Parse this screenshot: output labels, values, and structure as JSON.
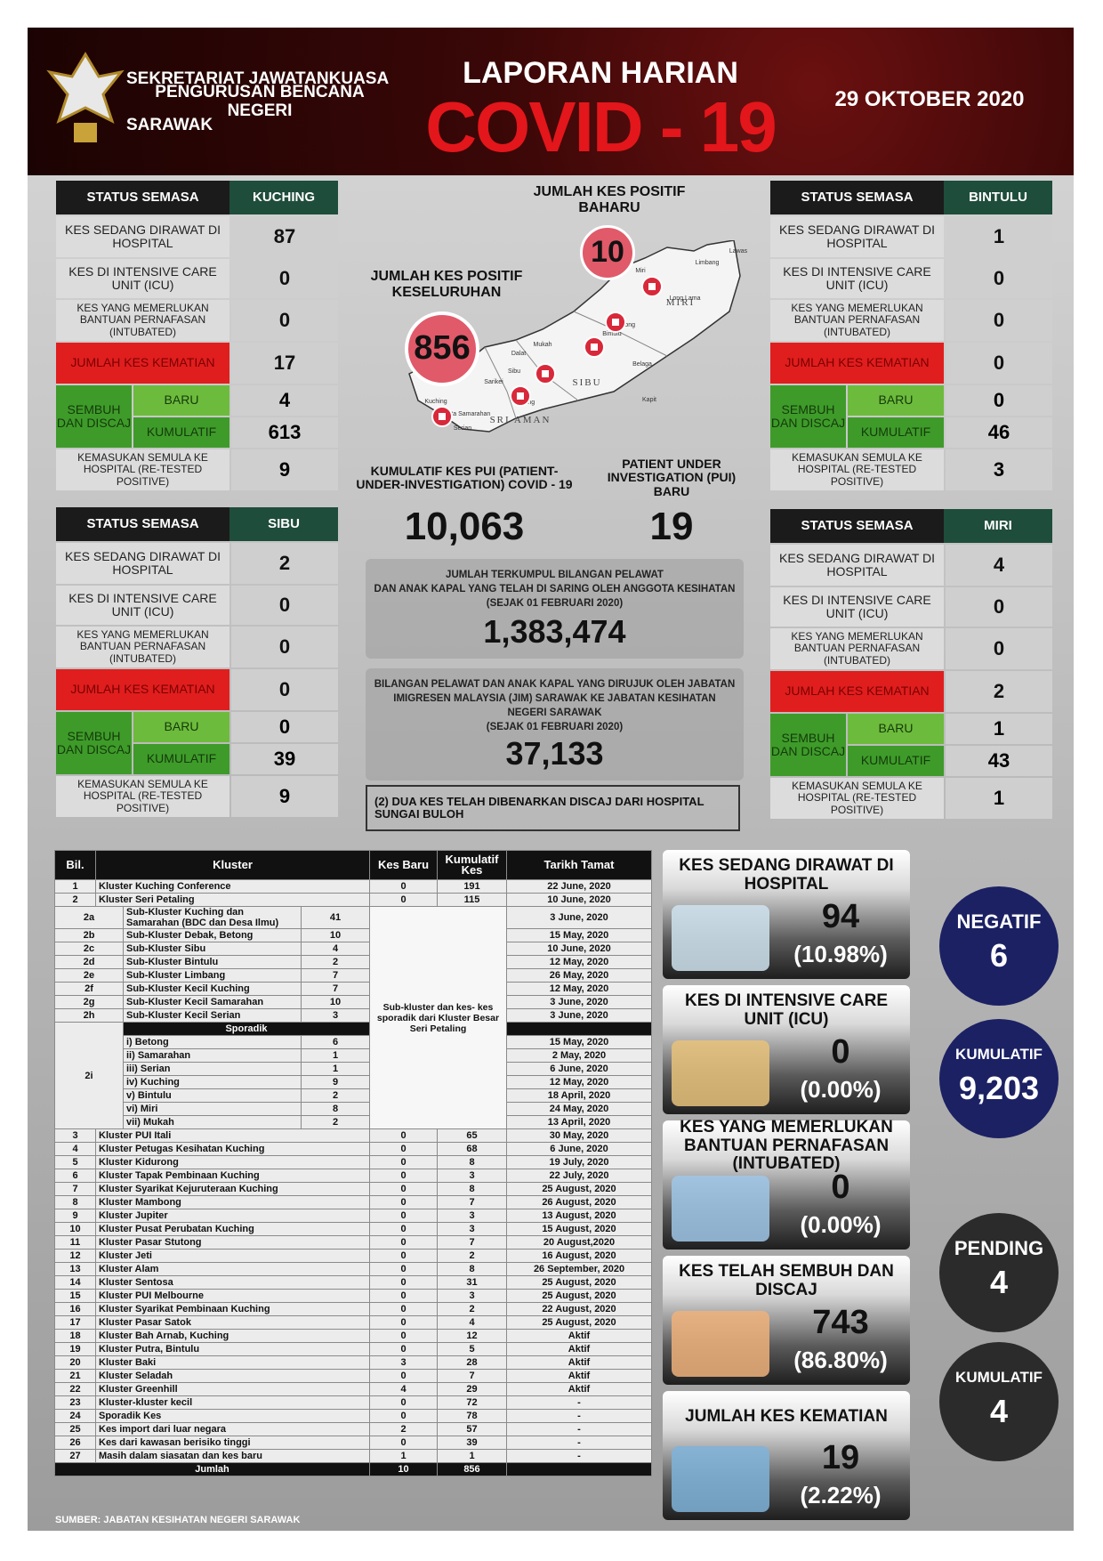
{
  "header": {
    "org_lines": [
      "SEKRETARIAT JAWATANKUASA",
      "PENGURUSAN BENCANA NEGERI",
      "SARAWAK"
    ],
    "title": "LAPORAN HARIAN",
    "subtitle": "COVID - 19",
    "date": "29 OKTOBER 2020"
  },
  "panels": [
    {
      "header": "STATUS SEMASA",
      "district": "KUCHING",
      "hospital": {
        "label": "KES SEDANG DIRAWAT DI HOSPITAL",
        "value": 87
      },
      "icu": {
        "label": "KES DI INTENSIVE CARE UNIT (ICU)",
        "value": 0
      },
      "intubated": {
        "label": "KES YANG MEMERLUKAN BANTUAN PERNAFASAN (INTUBATED)",
        "value": 0
      },
      "deaths": {
        "label": "JUMLAH KES KEMATIAN",
        "value": 17
      },
      "recovered": {
        "label": "SEMBUH DAN DISCAJ",
        "new_label": "BARU",
        "new": 4,
        "cumulative_label": "KUMULATIF",
        "cumulative": 613
      },
      "retested": {
        "label": "KEMASUKAN SEMULA KE HOSPITAL (RE-TESTED POSITIVE)",
        "value": 9
      }
    },
    {
      "header": "STATUS SEMASA",
      "district": "BINTULU",
      "hospital": {
        "label": "KES SEDANG DIRAWAT DI HOSPITAL",
        "value": 1
      },
      "icu": {
        "label": "KES DI INTENSIVE CARE UNIT (ICU)",
        "value": 0
      },
      "intubated": {
        "label": "KES YANG MEMERLUKAN BANTUAN PERNAFASAN (INTUBATED)",
        "value": 0
      },
      "deaths": {
        "label": "JUMLAH KES KEMATIAN",
        "value": 0
      },
      "recovered": {
        "label": "SEMBUH DAN DISCAJ",
        "new_label": "BARU",
        "new": 0,
        "cumulative_label": "KUMULATIF",
        "cumulative": 46
      },
      "retested": {
        "label": "KEMASUKAN SEMULA KE HOSPITAL (RE-TESTED POSITIVE)",
        "value": 3
      }
    },
    {
      "header": "STATUS SEMASA",
      "district": "SIBU",
      "hospital": {
        "label": "KES SEDANG DIRAWAT DI HOSPITAL",
        "value": 2
      },
      "icu": {
        "label": "KES DI INTENSIVE CARE UNIT (ICU)",
        "value": 0
      },
      "intubated": {
        "label": "KES YANG MEMERLUKAN BANTUAN PERNAFASAN (INTUBATED)",
        "value": 0
      },
      "deaths": {
        "label": "JUMLAH KES KEMATIAN",
        "value": 0
      },
      "recovered": {
        "label": "SEMBUH DAN DISCAJ",
        "new_label": "BARU",
        "new": 0,
        "cumulative_label": "KUMULATIF",
        "cumulative": 39
      },
      "retested": {
        "label": "KEMASUKAN SEMULA KE HOSPITAL (RE-TESTED POSITIVE)",
        "value": 9
      }
    },
    {
      "header": "STATUS SEMASA",
      "district": "MIRI",
      "hospital": {
        "label": "KES SEDANG DIRAWAT DI HOSPITAL",
        "value": 4
      },
      "icu": {
        "label": "KES DI INTENSIVE CARE UNIT (ICU)",
        "value": 0
      },
      "intubated": {
        "label": "KES YANG MEMERLUKAN BANTUAN PERNAFASAN (INTUBATED)",
        "value": 0
      },
      "deaths": {
        "label": "JUMLAH KES KEMATIAN",
        "value": 2
      },
      "recovered": {
        "label": "SEMBUH DAN DISCAJ",
        "new_label": "BARU",
        "new": 1,
        "cumulative_label": "KUMULATIF",
        "cumulative": 43
      },
      "retested": {
        "label": "KEMASUKAN SEMULA KE HOSPITAL (RE-TESTED POSITIVE)",
        "value": 1
      }
    }
  ],
  "center": {
    "new_cases": {
      "label": "JUMLAH KES POSITIF BAHARU",
      "value": 10
    },
    "total_cases": {
      "label": "JUMLAH KES POSITIF KESELURUHAN",
      "value": 856
    },
    "map": {
      "regions": [
        "MIRI",
        "SIBU",
        "SRI AMAN"
      ],
      "towns": [
        "Limbang",
        "Lawas",
        "Miri",
        "Long Lama",
        "Kidurong",
        "Bintulu",
        "Belaga",
        "Mukah",
        "Dalat",
        "Sibu",
        "Sarikei",
        "Kapit",
        "Betong",
        "Kuching",
        "Kota Samarahan",
        "Serian"
      ]
    },
    "pui_cumulative": {
      "label": "KUMULATIF KES PUI (PATIENT-UNDER-INVESTIGATION) COVID - 19",
      "value": "10,063"
    },
    "pui_new": {
      "label": "PATIENT UNDER INVESTIGATION (PUI) BARU",
      "value": 19
    },
    "screened": {
      "lines": [
        "JUMLAH TERKUMPUL BILANGAN PELAWAT",
        "DAN ANAK KAPAL YANG TELAH DI SARING OLEH ANGGOTA KESIHATAN",
        "(SEJAK 01 FEBRUARI 2020)"
      ],
      "value": "1,383,474"
    },
    "referred": {
      "lines": [
        "BILANGAN PELAWAT DAN ANAK KAPAL YANG DIRUJUK OLEH JABATAN",
        "IMIGRESEN MALAYSIA (JIM) SARAWAK KE JABATAN KESIHATAN",
        "NEGERI SARAWAK",
        "(SEJAK 01 FEBRUARI 2020)"
      ],
      "value": "37,133"
    },
    "note": "(2) DUA KES TELAH DIBENARKAN DISCAJ DARI HOSPITAL SUNGAI BULOH"
  },
  "cluster_table": {
    "headers": [
      "Bil.",
      "Kluster",
      "Kes Baru",
      "Kumulatif Kes",
      "Tarikh Tamat"
    ],
    "rows_top": [
      {
        "no": "1",
        "name": "Kluster Kuching Conference",
        "new": 0,
        "total": 191,
        "end": "22 June, 2020"
      },
      {
        "no": "2",
        "name": "Kluster Seri Petaling",
        "new": 0,
        "total": 115,
        "end": "10 June, 2020"
      }
    ],
    "sub_rows": [
      {
        "no": "2a",
        "name": "Sub-Kluster Kuching dan Samarahan (BDC dan Desa Ilmu)",
        "total": 41,
        "end": "3 June, 2020"
      },
      {
        "no": "2b",
        "name": "Sub-Kluster Debak, Betong",
        "total": 10,
        "end": "15 May, 2020"
      },
      {
        "no": "2c",
        "name": "Sub-Kluster Sibu",
        "total": 4,
        "end": "10 June, 2020"
      },
      {
        "no": "2d",
        "name": "Sub-Kluster Bintulu",
        "total": 2,
        "end": "12 May, 2020"
      },
      {
        "no": "2e",
        "name": "Sub-Kluster Limbang",
        "total": 7,
        "end": "26 May, 2020"
      },
      {
        "no": "2f",
        "name": "Sub-Kluster Kecil Kuching",
        "total": 7,
        "end": "12 May, 2020"
      },
      {
        "no": "2g",
        "name": "Sub-Kluster Kecil Samarahan",
        "total": 10,
        "end": "3 June, 2020"
      },
      {
        "no": "2h",
        "name": "Sub-Kluster Kecil Serian",
        "total": 3,
        "end": "3 June, 2020"
      }
    ],
    "merged_note": "Sub-kluster dan kes- kes sporadik dari Kluster Besar Seri Petaling",
    "sporadik": {
      "no": "2i",
      "label": "Sporadik",
      "rows": [
        {
          "name": "i) Betong",
          "total": 6,
          "end": "15 May, 2020"
        },
        {
          "name": "ii) Samarahan",
          "total": 1,
          "end": "2 May, 2020"
        },
        {
          "name": "iii) Serian",
          "total": 1,
          "end": "6 June, 2020"
        },
        {
          "name": "iv) Kuching",
          "total": 9,
          "end": "12 May, 2020"
        },
        {
          "name": "v) Bintulu",
          "total": 2,
          "end": "18 April, 2020"
        },
        {
          "name": "vi) Miri",
          "total": 8,
          "end": "24 May, 2020"
        },
        {
          "name": "vii) Mukah",
          "total": 2,
          "end": "13 April, 2020"
        }
      ]
    },
    "rows_bottom": [
      {
        "no": "3",
        "name": "Kluster PUI Itali",
        "new": 0,
        "total": 65,
        "end": "30 May, 2020"
      },
      {
        "no": "4",
        "name": "Kluster Petugas Kesihatan Kuching",
        "new": 0,
        "total": 68,
        "end": "6 June, 2020"
      },
      {
        "no": "5",
        "name": "Kluster Kidurong",
        "new": 0,
        "total": 8,
        "end": "19 July, 2020"
      },
      {
        "no": "6",
        "name": "Kluster Tapak Pembinaan Kuching",
        "new": 0,
        "total": 3,
        "end": "22 July, 2020"
      },
      {
        "no": "7",
        "name": "Kluster Syarikat Kejuruteraan Kuching",
        "new": 0,
        "total": 8,
        "end": "25 August, 2020"
      },
      {
        "no": "8",
        "name": "Kluster Mambong",
        "new": 0,
        "total": 7,
        "end": "26 August, 2020"
      },
      {
        "no": "9",
        "name": "Kluster Jupiter",
        "new": 0,
        "total": 3,
        "end": "13 August, 2020"
      },
      {
        "no": "10",
        "name": "Kluster Pusat Perubatan Kuching",
        "new": 0,
        "total": 3,
        "end": "15 August, 2020"
      },
      {
        "no": "11",
        "name": "Kluster Pasar Stutong",
        "new": 0,
        "total": 7,
        "end": "20 August,2020"
      },
      {
        "no": "12",
        "name": "Kluster Jeti",
        "new": 0,
        "total": 2,
        "end": "16 August, 2020"
      },
      {
        "no": "13",
        "name": "Kluster Alam",
        "new": 0,
        "total": 8,
        "end": "26 September, 2020"
      },
      {
        "no": "14",
        "name": "Kluster Sentosa",
        "new": 0,
        "total": 31,
        "end": "25 August, 2020"
      },
      {
        "no": "15",
        "name": "Kluster PUI Melbourne",
        "new": 0,
        "total": 3,
        "end": "25 August, 2020"
      },
      {
        "no": "16",
        "name": "Kluster Syarikat Pembinaan Kuching",
        "new": 0,
        "total": 2,
        "end": "22 August, 2020"
      },
      {
        "no": "17",
        "name": "Kluster Pasar Satok",
        "new": 0,
        "total": 4,
        "end": "25 August, 2020"
      },
      {
        "no": "18",
        "name": "Kluster Bah Arnab, Kuching",
        "new": 0,
        "total": 12,
        "end": "Aktif"
      },
      {
        "no": "19",
        "name": "Kluster Putra, Bintulu",
        "new": 0,
        "total": 5,
        "end": "Aktif"
      },
      {
        "no": "20",
        "name": "Kluster Baki",
        "new": 3,
        "total": 28,
        "end": "Aktif"
      },
      {
        "no": "21",
        "name": "Kluster Seladah",
        "new": 0,
        "total": 7,
        "end": "Aktif"
      },
      {
        "no": "22",
        "name": "Kluster Greenhill",
        "new": 4,
        "total": 29,
        "end": "Aktif"
      },
      {
        "no": "23",
        "name": "Kluster-kluster kecil",
        "new": 0,
        "total": 72,
        "end": "-"
      },
      {
        "no": "24",
        "name": "Sporadik Kes",
        "new": 0,
        "total": 78,
        "end": "-"
      },
      {
        "no": "25",
        "name": "Kes import dari luar negara",
        "new": 2,
        "total": 57,
        "end": "-"
      },
      {
        "no": "26",
        "name": "Kes dari kawasan berisiko tinggi",
        "new": 0,
        "total": 39,
        "end": "-"
      },
      {
        "no": "27",
        "name": "Masih dalam siasatan dan kes baru",
        "new": 1,
        "total": 1,
        "end": "-"
      }
    ],
    "footer": {
      "label": "Jumlah",
      "new": 10,
      "total": 856
    }
  },
  "summary_cards": [
    {
      "label": "KES SEDANG DIRAWAT DI HOSPITAL",
      "value": 94,
      "pct": "(10.98%)"
    },
    {
      "label": "KES DI INTENSIVE CARE UNIT (ICU)",
      "value": 0,
      "pct": "(0.00%)"
    },
    {
      "label": "KES YANG MEMERLUKAN BANTUAN PERNAFASAN (INTUBATED)",
      "value": 0,
      "pct": "(0.00%)"
    },
    {
      "label": "KES TELAH SEMBUH DAN DISCAJ",
      "value": 743,
      "pct": "(86.80%)"
    },
    {
      "label": "JUMLAH KES KEMATIAN",
      "value": 19,
      "pct": "(2.22%)"
    }
  ],
  "test_circles": [
    {
      "label": "NEGATIF",
      "value": 6,
      "color": "#1b2163"
    },
    {
      "label": "KUMULATIF",
      "value": "9,203",
      "color": "#1b2163"
    },
    {
      "label": "PENDING",
      "value": 4,
      "color": "#2b2b2b"
    },
    {
      "label": "KUMULATIF",
      "value": 4,
      "color": "#2b2b2b"
    }
  ],
  "source": "SUMBER: JABATAN KESIHATAN NEGERI SARAWAK"
}
